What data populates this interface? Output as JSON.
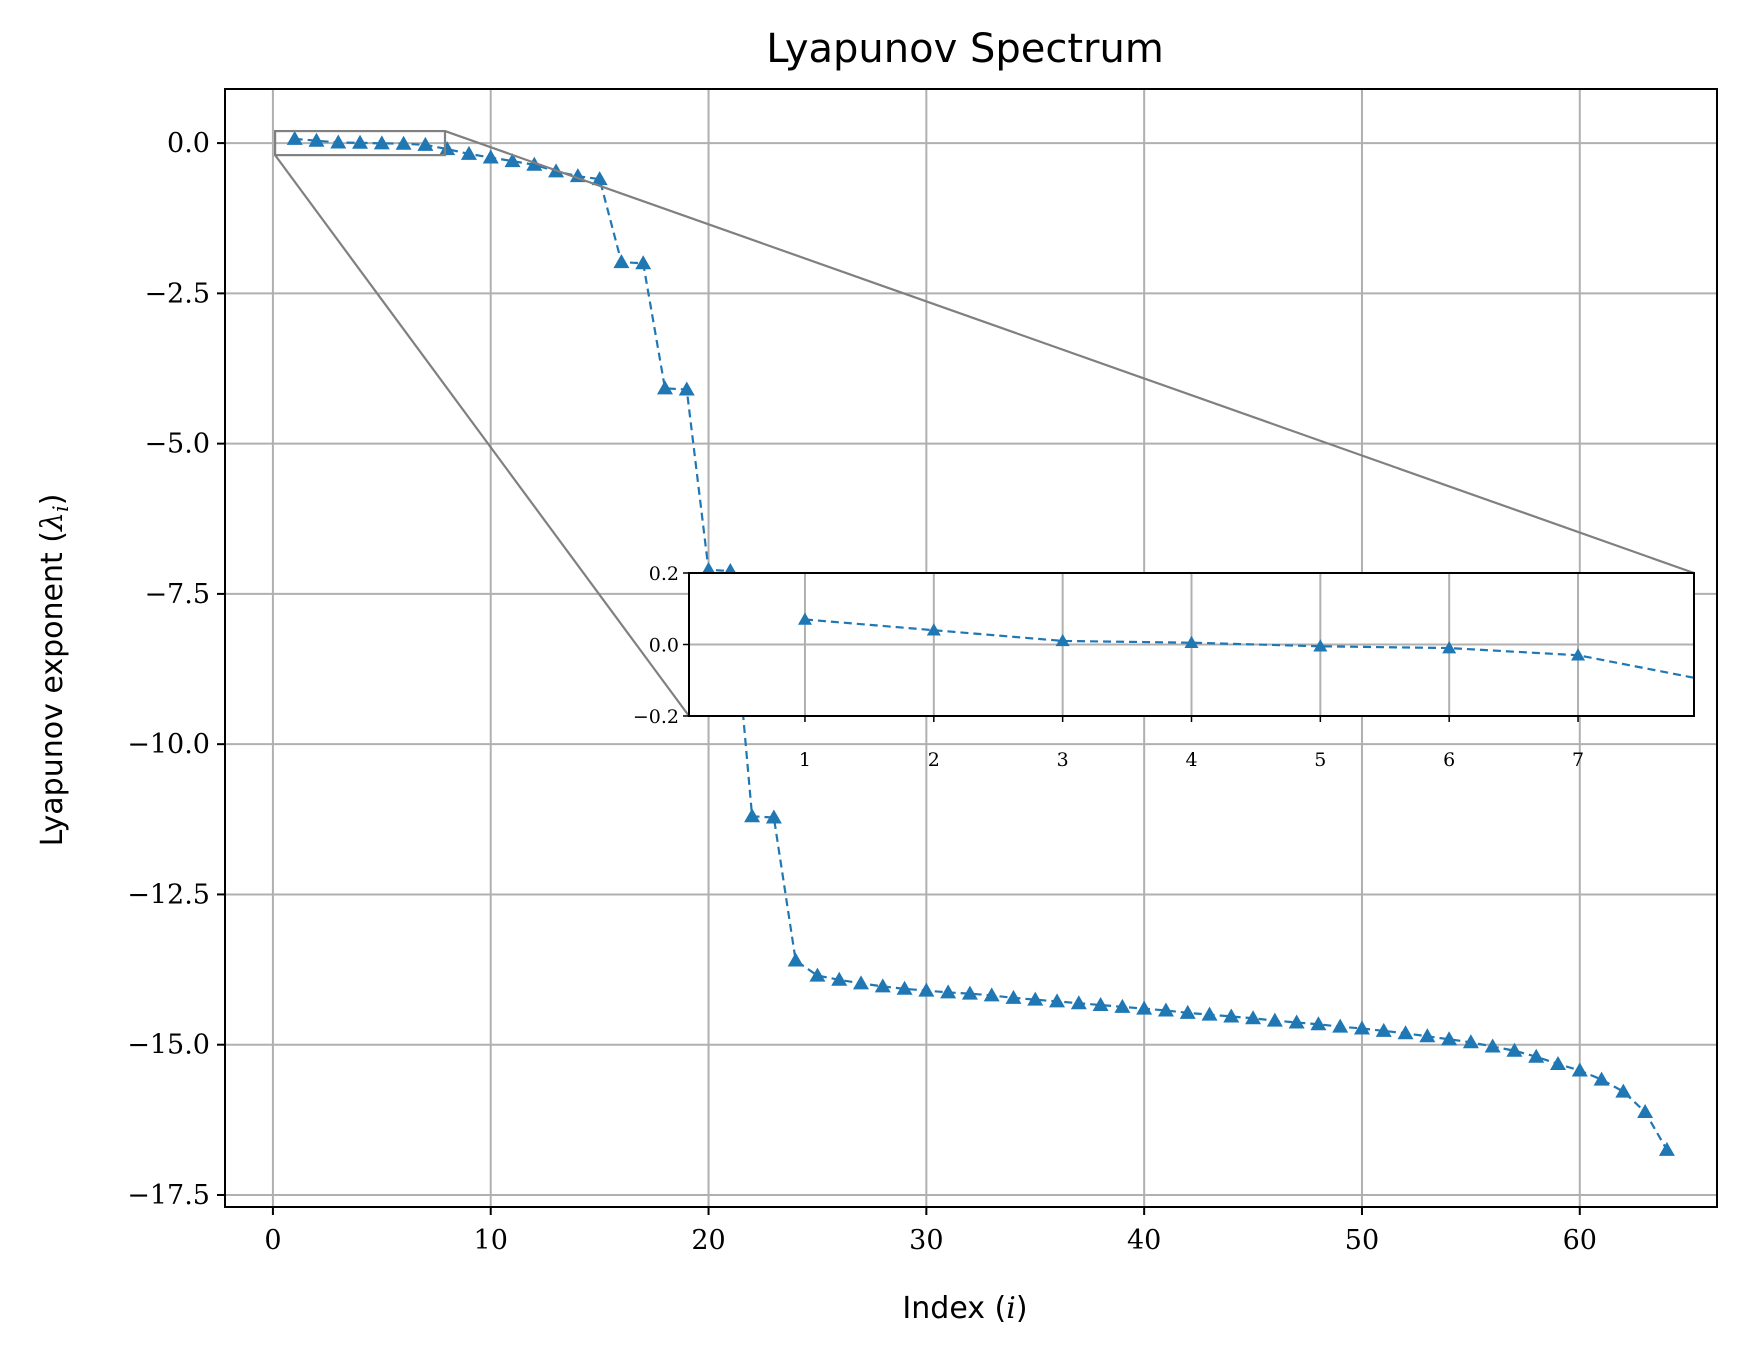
{
  "colors": {
    "series": "#1f77b4",
    "grid": "#b0b0b0",
    "zoom_lines": "#808080",
    "axes": "#000000"
  },
  "chart_data": {
    "type": "line",
    "title": "Lyapunov Spectrum",
    "xlabel_text": "Index (",
    "xlabel_var": "i",
    "ylabel_text": "Lyapunov exponent (",
    "ylabel_var": "λ",
    "ylabel_sub": "i",
    "xlim": [
      -2.2,
      66.3
    ],
    "ylim": [
      -17.7,
      0.9
    ],
    "xticks": [
      0,
      10,
      20,
      30,
      40,
      50,
      60
    ],
    "xtick_labels": [
      "0",
      "10",
      "20",
      "30",
      "40",
      "50",
      "60"
    ],
    "yticks": [
      0,
      -2.5,
      -5,
      -7.5,
      -10,
      -12.5,
      -15,
      -17.5
    ],
    "ytick_labels": [
      "0.0",
      "−2.5",
      "−5.0",
      "−7.5",
      "−10.0",
      "−12.5",
      "−15.0",
      "−17.5"
    ],
    "grid": true,
    "marker": "triangle",
    "linestyle": "dashed",
    "x": [
      1,
      2,
      3,
      4,
      5,
      6,
      7,
      8,
      9,
      10,
      11,
      12,
      13,
      14,
      15,
      16,
      17,
      18,
      19,
      20,
      21,
      22,
      23,
      24,
      25,
      26,
      27,
      28,
      29,
      30,
      31,
      32,
      33,
      34,
      35,
      36,
      37,
      38,
      39,
      40,
      41,
      42,
      43,
      44,
      45,
      46,
      47,
      48,
      49,
      50,
      51,
      52,
      53,
      54,
      55,
      56,
      57,
      58,
      59,
      60,
      61,
      62,
      63,
      64
    ],
    "y": [
      0.07,
      0.04,
      0.01,
      0.005,
      -0.005,
      -0.01,
      -0.03,
      -0.1,
      -0.18,
      -0.24,
      -0.3,
      -0.36,
      -0.47,
      -0.55,
      -0.6,
      -1.98,
      -2.0,
      -4.08,
      -4.1,
      -7.1,
      -7.12,
      -11.2,
      -11.22,
      -13.6,
      -13.85,
      -13.92,
      -13.98,
      -14.03,
      -14.07,
      -14.1,
      -14.13,
      -14.15,
      -14.18,
      -14.22,
      -14.25,
      -14.28,
      -14.31,
      -14.34,
      -14.37,
      -14.4,
      -14.43,
      -14.47,
      -14.5,
      -14.53,
      -14.56,
      -14.6,
      -14.63,
      -14.66,
      -14.7,
      -14.73,
      -14.77,
      -14.81,
      -14.86,
      -14.91,
      -14.96,
      -15.03,
      -15.1,
      -15.2,
      -15.32,
      -15.43,
      -15.58,
      -15.78,
      -16.12,
      -16.75
    ],
    "inset": {
      "xlim": [
        0.1,
        7.9
      ],
      "ylim": [
        -0.2,
        0.2
      ],
      "xticks": [
        1,
        2,
        3,
        4,
        5,
        6,
        7
      ],
      "xtick_labels": [
        "1",
        "2",
        "3",
        "4",
        "5",
        "6",
        "7"
      ],
      "yticks": [
        0.2,
        0.0,
        -0.2
      ],
      "ytick_labels": [
        "0.2",
        "0.0",
        "−0.2"
      ],
      "grid": true
    }
  }
}
